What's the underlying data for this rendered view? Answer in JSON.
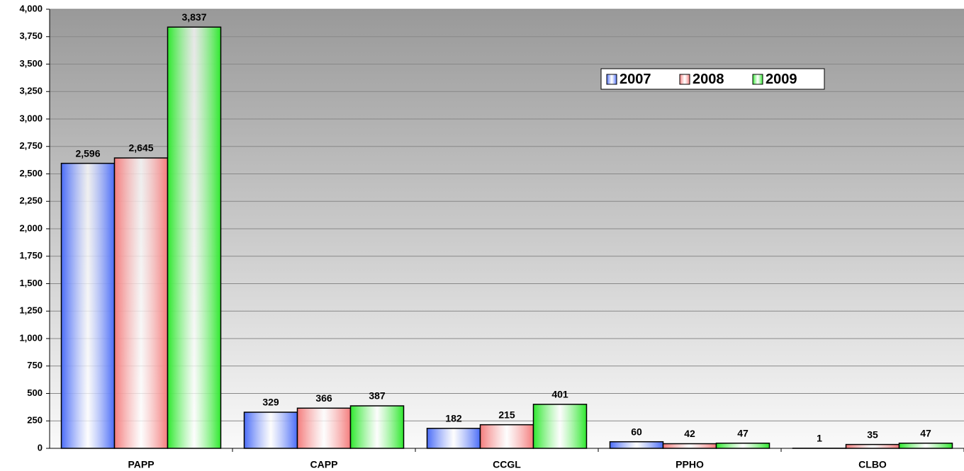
{
  "chart_data": {
    "type": "bar",
    "categories": [
      "PAPP",
      "CAPP",
      "CCGL",
      "PPHO",
      "CLBO"
    ],
    "series": [
      {
        "name": "2007",
        "color": "#4a6cf7",
        "values": [
          2596,
          329,
          182,
          60,
          1
        ],
        "value_labels": [
          "2,596",
          "329",
          "182",
          "60",
          "1"
        ]
      },
      {
        "name": "2008",
        "color": "#f47c7c",
        "values": [
          2645,
          366,
          215,
          42,
          35
        ],
        "value_labels": [
          "2,645",
          "366",
          "215",
          "42",
          "35"
        ]
      },
      {
        "name": "2009",
        "color": "#2ee82e",
        "values": [
          3837,
          387,
          401,
          47,
          47
        ],
        "value_labels": [
          "3,837",
          "387",
          "401",
          "47",
          "47"
        ]
      }
    ],
    "ylim": [
      0,
      4000
    ],
    "yticks": [
      0,
      250,
      500,
      750,
      {
        "value": 1000,
        "label": "1,000"
      },
      {
        "value": 1250,
        "label": "1,250"
      },
      {
        "value": 1500,
        "label": "1,500"
      },
      {
        "value": 1750,
        "label": "1,750"
      },
      {
        "value": 2000,
        "label": "2,000"
      },
      {
        "value": 2250,
        "label": "2,250"
      },
      {
        "value": 2500,
        "label": "2,500"
      },
      {
        "value": 2750,
        "label": "2,750"
      },
      {
        "value": 3000,
        "label": "3,000"
      },
      {
        "value": 3250,
        "label": "3,250"
      },
      {
        "value": 3500,
        "label": "3,500"
      },
      {
        "value": 3750,
        "label": "3,750"
      },
      {
        "value": 4000,
        "label": "4,000"
      }
    ],
    "grid": true,
    "legend": "top-right"
  }
}
